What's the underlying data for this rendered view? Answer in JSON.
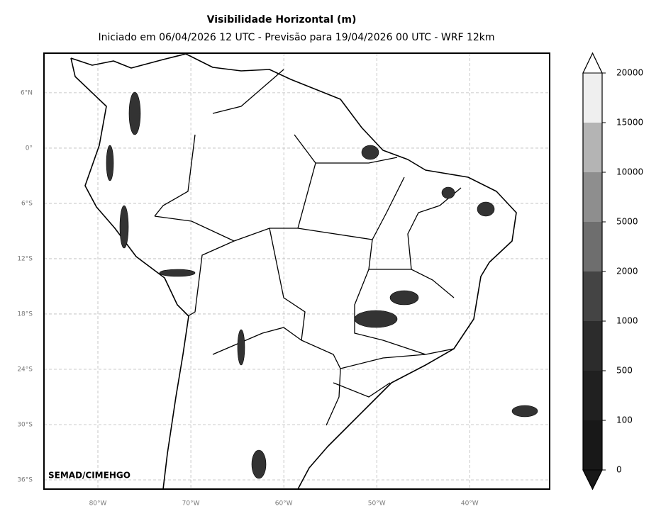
{
  "title": "Visibilidade Horizontal (m)",
  "subtitle": "Iniciado em 06/04/2026 12 UTC - Previsão para 19/04/2026 00 UTC - WRF 12km",
  "credit": "SEMAD/CIMEHGO",
  "map": {
    "xlim": [
      -85.8,
      -31.4
    ],
    "ylim": [
      -37.0,
      10.3
    ],
    "grid": true,
    "xticks": [
      {
        "value": -80,
        "label": "80°W"
      },
      {
        "value": -70,
        "label": "70°W"
      },
      {
        "value": -60,
        "label": "60°W"
      },
      {
        "value": -50,
        "label": "50°W"
      },
      {
        "value": -40,
        "label": "40°W"
      }
    ],
    "yticks": [
      {
        "value": 6,
        "label": "6°N"
      },
      {
        "value": 0,
        "label": "0°"
      },
      {
        "value": -6,
        "label": "6°S"
      },
      {
        "value": -12,
        "label": "12°S"
      },
      {
        "value": -18,
        "label": "18°S"
      },
      {
        "value": -24,
        "label": "24°S"
      },
      {
        "value": -30,
        "label": "30°S"
      },
      {
        "value": -36,
        "label": "36°S"
      }
    ]
  },
  "colorbar": {
    "ticks": [
      0,
      100,
      500,
      1000,
      2000,
      5000,
      10000,
      15000,
      20000
    ],
    "colors": [
      "#181818",
      "#202020",
      "#2c2c2c",
      "#444444",
      "#6e6e6e",
      "#8e8e8e",
      "#b4b4b4",
      "#efefef"
    ],
    "extend_low_color": "#181818",
    "extend_high_color": "#ffffff"
  }
}
